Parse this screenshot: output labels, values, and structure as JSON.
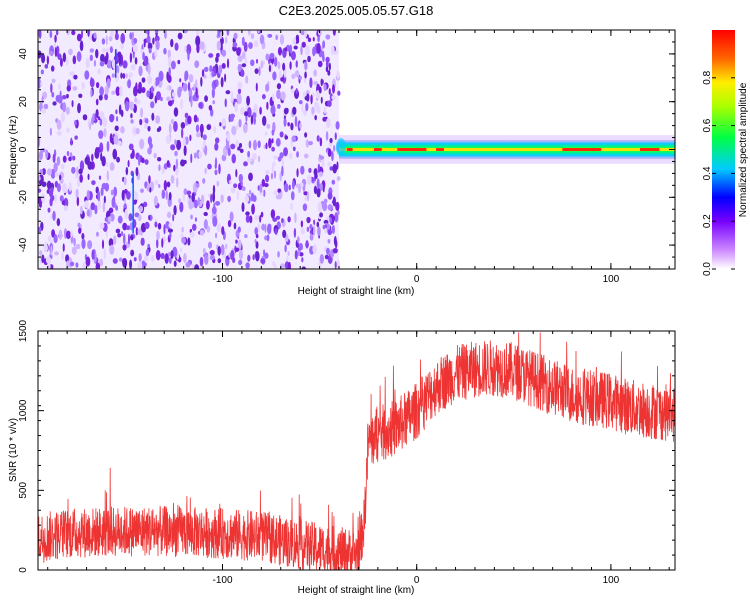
{
  "title": "C2E3.2025.005.05.57.G18",
  "chart_data": [
    {
      "type": "heatmap",
      "xlabel": "Height of straight line (km)",
      "ylabel": "Frequency (Hz)",
      "xlim": [
        -195,
        133
      ],
      "ylim": [
        -50,
        50
      ],
      "xticks": [
        -100,
        0,
        100
      ],
      "xtick_labels": [
        "-100",
        "0",
        "100"
      ],
      "yticks": [
        -40,
        -20,
        0,
        20,
        40
      ],
      "ytick_labels": [
        "-40",
        "-20",
        "0",
        "20",
        "40"
      ],
      "colorbar": {
        "label": "Normalized spectral amplitude",
        "range": [
          0,
          1
        ],
        "ticks": [
          0,
          0.2,
          0.4,
          0.6,
          0.8
        ],
        "tick_labels": [
          "0.0",
          "0.2",
          "0.4",
          "0.6",
          "0.8"
        ],
        "colormap": "rainbow (white-violet-blue-cyan-green-yellow-red)"
      },
      "regions": [
        {
          "x": [
            -195,
            -40
          ],
          "freq_hz": [
            -50,
            50
          ],
          "amplitude": "low, noise-like (0.1-0.3)"
        },
        {
          "x": [
            -40,
            133
          ],
          "freq_hz": [
            -3,
            3
          ],
          "amplitude": "high signal band centered near 0 Hz (0.4-1.0)"
        }
      ],
      "grid": false
    },
    {
      "type": "line",
      "xlabel": "Height of straight line (km)",
      "ylabel": "SNR (10 * v/v)",
      "xlim": [
        -195,
        133
      ],
      "ylim": [
        0,
        1500
      ],
      "xticks": [
        -100,
        0,
        100
      ],
      "xtick_labels": [
        "-100",
        "0",
        "100"
      ],
      "yticks": [
        0,
        500,
        1000,
        1500
      ],
      "ytick_labels": [
        "0",
        "500",
        "1000",
        "1500"
      ],
      "series": [
        {
          "color": "#ee3333",
          "x": [
            -195,
            -180,
            -160,
            -140,
            -120,
            -100,
            -80,
            -60,
            -40,
            -30,
            -27,
            -25,
            -20,
            -15,
            -10,
            -5,
            0,
            10,
            20,
            30,
            40,
            50,
            60,
            70,
            80,
            90,
            100,
            110,
            120,
            133
          ],
          "y": [
            200,
            230,
            240,
            245,
            240,
            230,
            210,
            160,
            110,
            100,
            300,
            800,
            850,
            870,
            900,
            950,
            1000,
            1150,
            1230,
            1260,
            1270,
            1250,
            1200,
            1150,
            1100,
            1080,
            1060,
            1020,
            1000,
            980
          ]
        }
      ],
      "grid": false
    }
  ]
}
